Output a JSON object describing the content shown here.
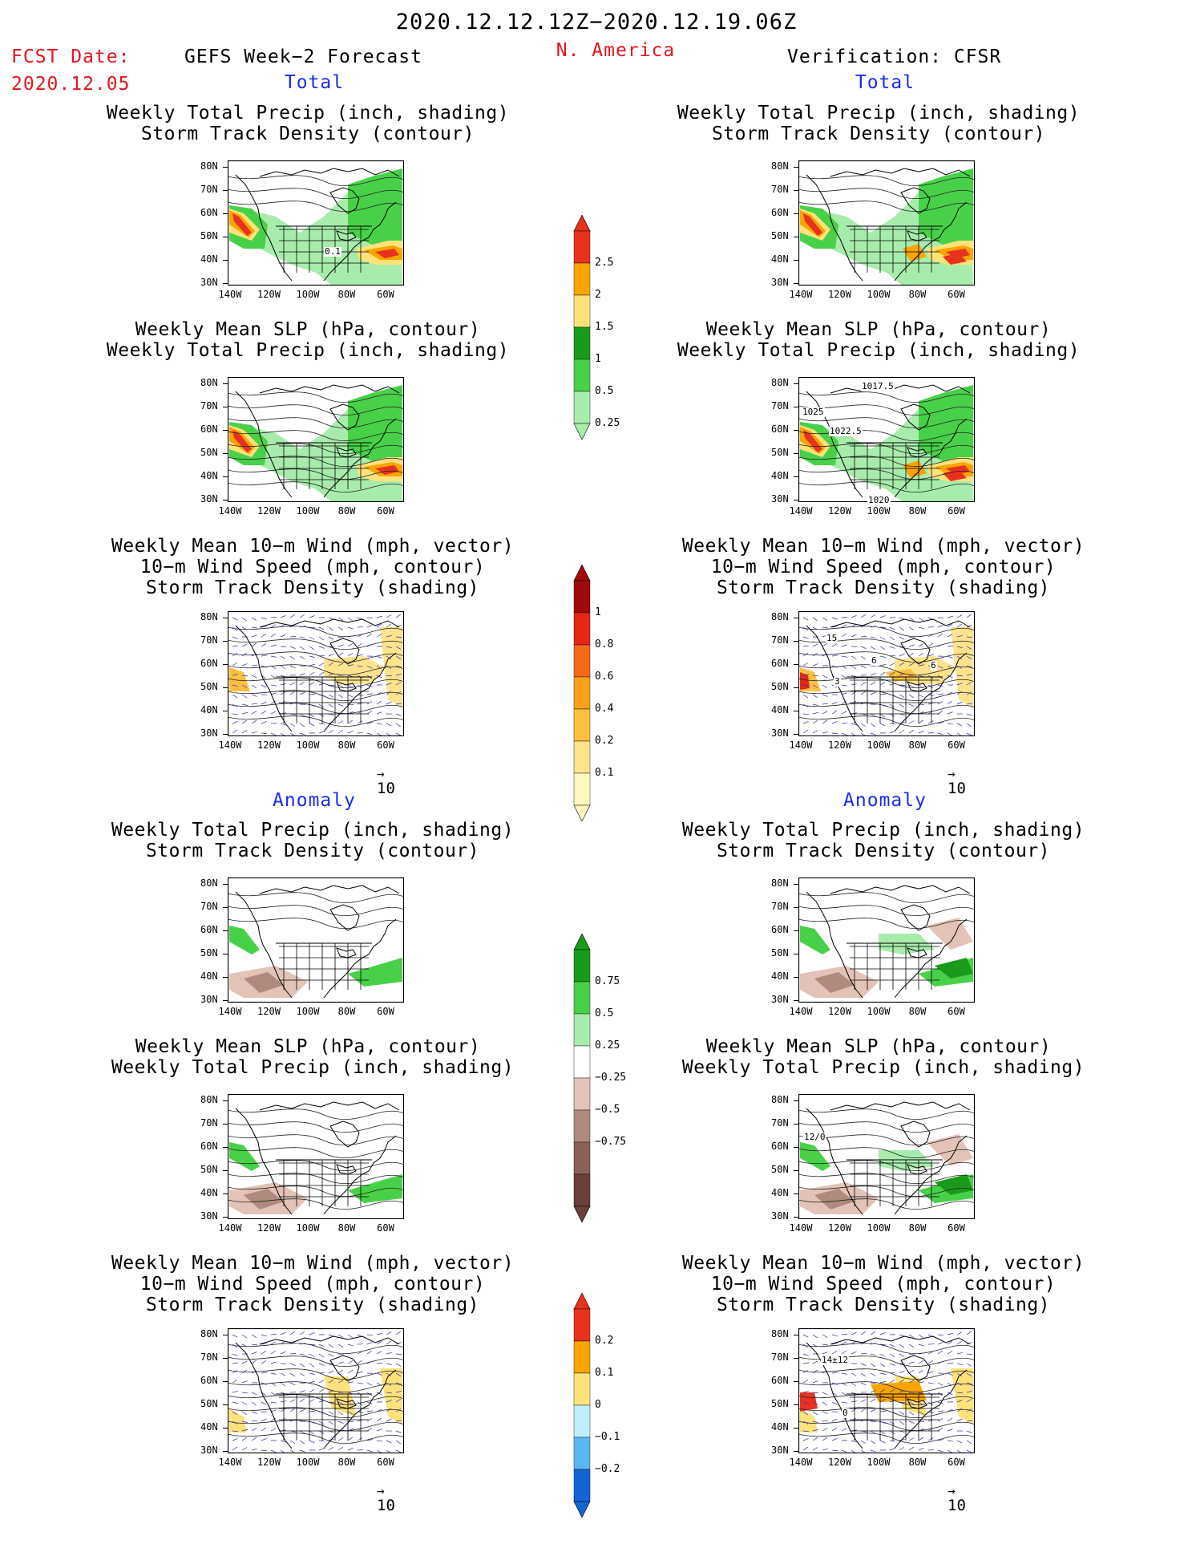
{
  "header": {
    "date_range": "2020.12.12.12Z−2020.12.19.06Z",
    "fcst_label": "FCST Date:",
    "fcst_date": "2020.12.05",
    "model": "GEFS Week−2 Forecast",
    "region": "N. America",
    "verification": "Verification: CFSR"
  },
  "sections": {
    "total": "Total",
    "anomaly": "Anomaly"
  },
  "panel_titles": {
    "precip_storm": [
      "Weekly Total Precip (inch, shading)",
      "Storm Track Density (contour)"
    ],
    "slp_precip": [
      "Weekly Mean SLP (hPa, contour)",
      "Weekly Total Precip (inch, shading)"
    ],
    "wind": [
      "Weekly Mean 10−m Wind (mph, vector)",
      "10−m Wind Speed (mph, contour)",
      "Storm Track Density (shading)"
    ]
  },
  "axes": {
    "lat_labels": [
      "80N",
      "70N",
      "60N",
      "50N",
      "40N",
      "30N"
    ],
    "lon_labels": [
      "140W",
      "120W",
      "100W",
      "80W",
      "60W"
    ]
  },
  "vector_reference": "10",
  "contour_labels": {
    "fcst_storm": "0.1",
    "cfsr_slp_a": "1017.5",
    "cfsr_slp_b": "1025",
    "cfsr_slp_c": "1022.5",
    "cfsr_slp_d": "1020",
    "cfsr_wind_a": "15",
    "cfsr_wind_b": "6",
    "cfsr_wind_c": "3",
    "cfsr_wind_d": "6",
    "cfsr_slp_anom": "12/0",
    "cfsr_wind_anom": "14±12",
    "cfsr_wind_anom_b": "0"
  },
  "colorbars": {
    "precip_total": {
      "labels": [
        "2.5",
        "2",
        "1.5",
        "1",
        "0.5",
        "0.25"
      ],
      "colors": [
        "#e8321e",
        "#f9a500",
        "#fde27a",
        "#1a9a1a",
        "#49d049",
        "#a8ecac"
      ]
    },
    "storm_total": {
      "labels": [
        "1",
        "0.8",
        "0.6",
        "0.4",
        "0.2",
        "0.1"
      ],
      "colors": [
        "#a00a0a",
        "#e42814",
        "#f46a1a",
        "#fba01e",
        "#fcc040",
        "#fde38c",
        "#fff7c0"
      ]
    },
    "precip_anom": {
      "labels": [
        "0.75",
        "0.5",
        "0.25",
        "−0.25",
        "−0.5",
        "−0.75"
      ],
      "colors": [
        "#1a9a1a",
        "#49d049",
        "#a8ecac",
        "#ffffff",
        "#e3c3b7",
        "#b08a7e",
        "#8b6258",
        "#6a4038"
      ]
    },
    "storm_anom": {
      "labels": [
        "0.2",
        "0.1",
        "0",
        "−0.1",
        "−0.2"
      ],
      "colors": [
        "#e8321e",
        "#f9a500",
        "#fde27a",
        "#bfeefc",
        "#5ab6f0",
        "#1464d2"
      ]
    }
  },
  "colors": {
    "title_red": "#e8141e",
    "section_blue": "#1a2cf0"
  }
}
